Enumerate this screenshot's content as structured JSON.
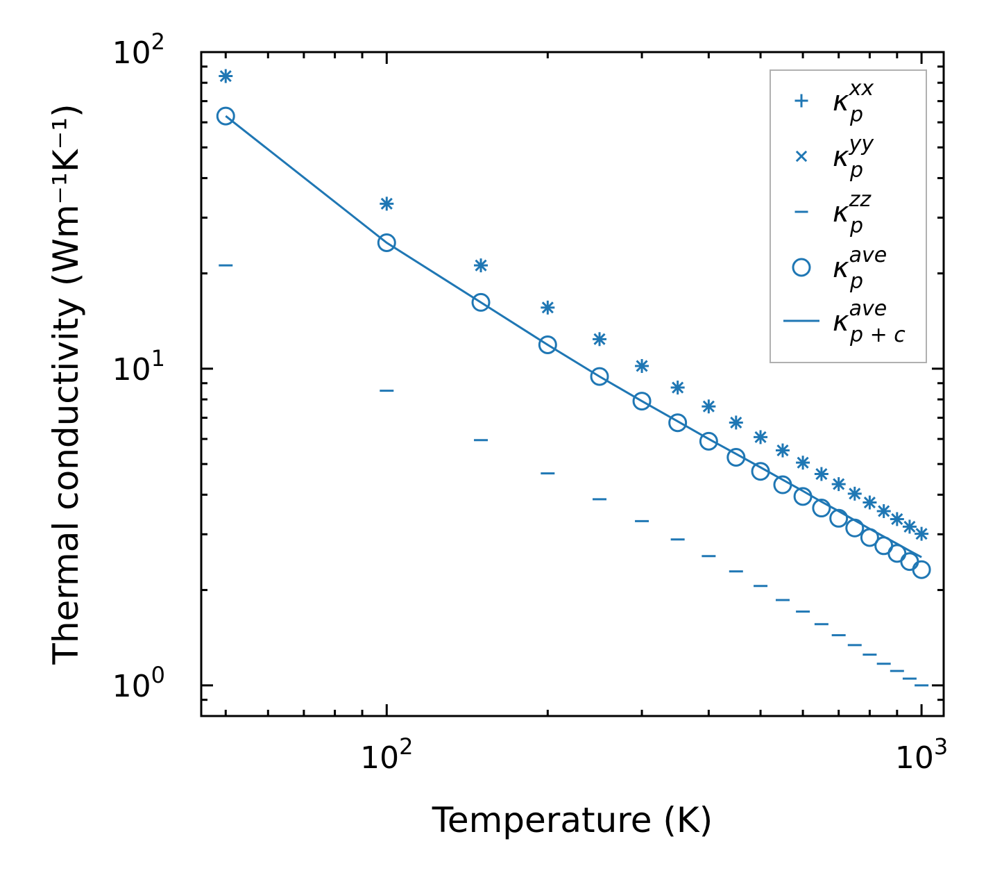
{
  "chart_data": {
    "type": "scatter",
    "scale": "log-log",
    "xlabel": "Temperature (K)",
    "ylabel": "Thermal conductivity (Wm⁻¹K⁻¹)",
    "xlim": [
      45,
      1100
    ],
    "ylim": [
      0.8,
      100
    ],
    "color": "#1f77b4",
    "x_ticks": [
      {
        "value": 100,
        "base": "10",
        "exp": "2"
      },
      {
        "value": 1000,
        "base": "10",
        "exp": "3"
      }
    ],
    "y_ticks": [
      {
        "value": 1,
        "base": "10",
        "exp": "0"
      },
      {
        "value": 10,
        "base": "10",
        "exp": "1"
      },
      {
        "value": 100,
        "base": "10",
        "exp": "2"
      }
    ],
    "x": [
      50,
      100,
      150,
      200,
      250,
      300,
      350,
      400,
      450,
      500,
      550,
      600,
      650,
      700,
      750,
      800,
      850,
      900,
      950,
      1000
    ],
    "series": [
      {
        "key": "xx",
        "name": "κ",
        "sub": "p",
        "sup": "xx",
        "marker": "plus",
        "values": [
          84.0,
          33.2,
          21.2,
          15.6,
          12.4,
          10.2,
          8.72,
          7.6,
          6.76,
          6.08,
          5.52,
          5.05,
          4.65,
          4.32,
          4.03,
          3.78,
          3.55,
          3.35,
          3.17,
          3.01
        ]
      },
      {
        "key": "yy",
        "name": "κ",
        "sub": "p",
        "sup": "yy",
        "marker": "x",
        "values": [
          84.0,
          33.2,
          21.2,
          15.6,
          12.4,
          10.2,
          8.72,
          7.6,
          6.76,
          6.08,
          5.52,
          5.05,
          4.65,
          4.32,
          4.03,
          3.78,
          3.55,
          3.35,
          3.17,
          3.01
        ]
      },
      {
        "key": "zz",
        "name": "κ",
        "sub": "p",
        "sup": "zz",
        "marker": "hline",
        "values": [
          21.2,
          8.52,
          5.95,
          4.67,
          3.87,
          3.3,
          2.89,
          2.56,
          2.29,
          2.06,
          1.86,
          1.71,
          1.56,
          1.44,
          1.34,
          1.25,
          1.17,
          1.11,
          1.05,
          1.0
        ]
      },
      {
        "key": "ave",
        "name": "κ",
        "sub": "p",
        "sup": "ave",
        "marker": "circle",
        "values": [
          62.8,
          25.0,
          16.2,
          11.9,
          9.45,
          7.9,
          6.75,
          5.9,
          5.25,
          4.74,
          4.3,
          3.95,
          3.63,
          3.37,
          3.14,
          2.93,
          2.76,
          2.61,
          2.46,
          2.32
        ]
      },
      {
        "key": "ave_pc",
        "name": "κ",
        "sub": "p + c",
        "sup": "ave",
        "marker": "line",
        "values": [
          62.8,
          25.0,
          16.2,
          11.9,
          9.45,
          7.9,
          6.82,
          6.0,
          5.38,
          4.88,
          4.46,
          4.11,
          3.8,
          3.55,
          3.32,
          3.12,
          2.95,
          2.8,
          2.66,
          2.54
        ]
      }
    ],
    "legend_position": "top-right"
  }
}
